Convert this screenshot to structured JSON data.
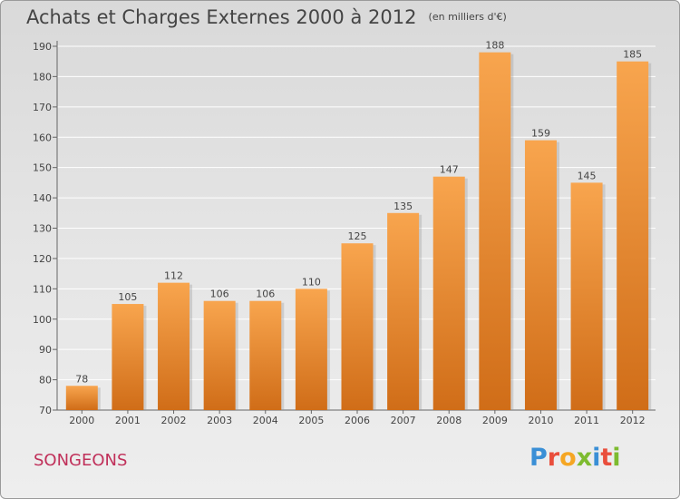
{
  "chart_data": {
    "type": "bar",
    "title": "Achats et Charges Externes 2000 à 2012",
    "subtitle": "(en milliers d'€)",
    "categories": [
      "2000",
      "2001",
      "2002",
      "2003",
      "2004",
      "2005",
      "2006",
      "2007",
      "2008",
      "2009",
      "2010",
      "2011",
      "2012"
    ],
    "values": [
      78,
      105,
      112,
      106,
      106,
      110,
      125,
      135,
      147,
      188,
      159,
      145,
      185
    ],
    "ylim": [
      70,
      190
    ],
    "yticks": [
      70,
      80,
      90,
      100,
      110,
      120,
      130,
      140,
      150,
      160,
      170,
      180,
      190
    ],
    "grid": true,
    "bar_color_light": "#f8a54e",
    "bar_color_dark": "#d06d18"
  },
  "commune": "SONGEONS",
  "logo": {
    "letters": [
      {
        "char": "P",
        "color": "#3a8fd6"
      },
      {
        "char": "r",
        "color": "#e94e3c"
      },
      {
        "char": "o",
        "color": "#f5a623"
      },
      {
        "char": "x",
        "color": "#7dbb2f"
      },
      {
        "char": "i",
        "color": "#3a8fd6"
      },
      {
        "char": "t",
        "color": "#e94e3c"
      },
      {
        "char": "i",
        "color": "#7dbb2f"
      }
    ]
  }
}
